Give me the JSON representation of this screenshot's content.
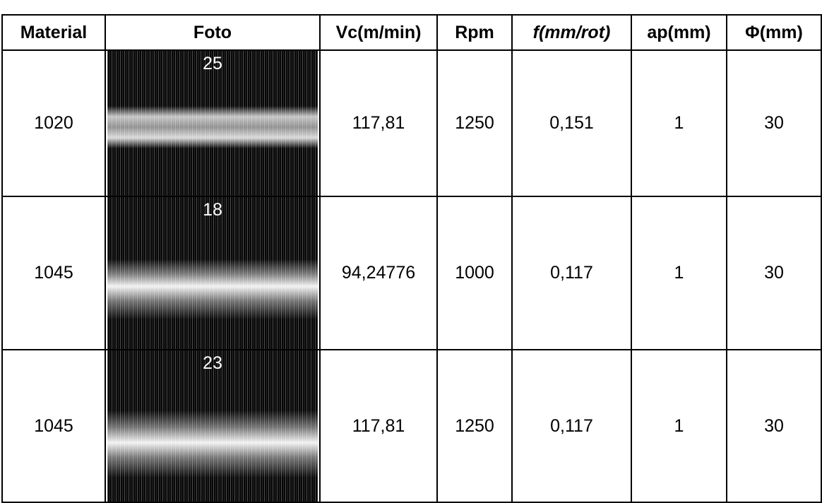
{
  "table": {
    "header": [
      "Material",
      "Foto",
      "Vc(m/min)",
      "Rpm",
      "f(mm/rot)",
      "ap(mm)",
      "Φ(mm)"
    ],
    "rows": [
      [
        "1020",
        "25",
        "117,81",
        "1250",
        "0,151",
        "1",
        "30"
      ],
      [
        "1045",
        "18",
        "94,24776",
        "1000",
        "0,117",
        "1",
        "30"
      ],
      [
        "1045",
        "23",
        "117,81",
        "1250",
        "0,117",
        "1",
        "30"
      ]
    ]
  }
}
